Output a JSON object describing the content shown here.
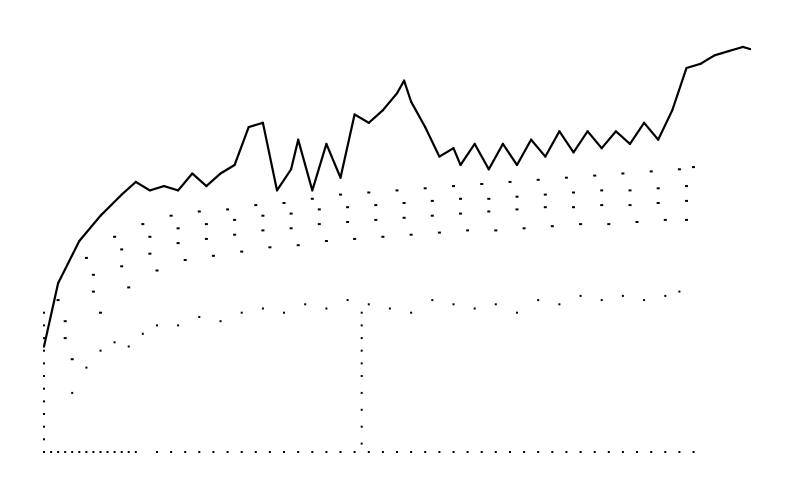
{
  "chart_data": {
    "type": "scatter",
    "title": "",
    "xlabel": "",
    "ylabel": "",
    "grid": false,
    "legend": "none",
    "axes_visible": false,
    "marker_color": "#000000",
    "xlim": [
      0,
      1
    ],
    "ylim": [
      0,
      1
    ],
    "series": [
      {
        "kind": "envelope",
        "x": [
          0.0,
          0.02,
          0.05,
          0.08,
          0.11,
          0.13,
          0.15,
          0.17,
          0.19,
          0.21,
          0.23,
          0.25,
          0.27,
          0.29,
          0.31,
          0.33,
          0.35,
          0.36,
          0.38,
          0.4,
          0.42,
          0.44,
          0.46,
          0.48,
          0.5,
          0.51,
          0.52,
          0.54,
          0.56,
          0.58,
          0.59,
          0.61,
          0.63,
          0.65,
          0.67,
          0.69,
          0.71,
          0.73,
          0.75,
          0.77,
          0.79,
          0.81,
          0.83,
          0.85,
          0.87,
          0.89,
          0.91,
          0.93,
          0.94,
          0.95,
          0.96,
          0.97,
          0.98,
          0.99,
          1.0
        ],
        "y": [
          0.25,
          0.4,
          0.5,
          0.56,
          0.61,
          0.64,
          0.62,
          0.63,
          0.62,
          0.66,
          0.63,
          0.66,
          0.68,
          0.77,
          0.78,
          0.62,
          0.67,
          0.74,
          0.62,
          0.73,
          0.65,
          0.8,
          0.78,
          0.81,
          0.85,
          0.88,
          0.83,
          0.77,
          0.7,
          0.72,
          0.68,
          0.73,
          0.67,
          0.73,
          0.68,
          0.74,
          0.7,
          0.76,
          0.71,
          0.76,
          0.72,
          0.76,
          0.73,
          0.78,
          0.74,
          0.81,
          0.91,
          0.92,
          0.93,
          0.94,
          0.945,
          0.95,
          0.955,
          0.96,
          0.955
        ]
      },
      {
        "kind": "band",
        "x": [
          0.02,
          0.06,
          0.1,
          0.14,
          0.18,
          0.22,
          0.26,
          0.3,
          0.34,
          0.38,
          0.42,
          0.46,
          0.5,
          0.54,
          0.58,
          0.62,
          0.66,
          0.7,
          0.74,
          0.78,
          0.82,
          0.86,
          0.9,
          0.92
        ],
        "y": [
          0.36,
          0.46,
          0.51,
          0.54,
          0.56,
          0.57,
          0.575,
          0.585,
          0.59,
          0.6,
          0.61,
          0.615,
          0.62,
          0.625,
          0.63,
          0.635,
          0.64,
          0.645,
          0.65,
          0.655,
          0.66,
          0.665,
          0.67,
          0.675
        ]
      },
      {
        "kind": "band",
        "x": [
          0.03,
          0.07,
          0.11,
          0.15,
          0.19,
          0.23,
          0.27,
          0.31,
          0.35,
          0.39,
          0.43,
          0.47,
          0.51,
          0.55,
          0.59,
          0.63,
          0.67,
          0.71,
          0.75,
          0.79,
          0.83,
          0.87,
          0.91
        ],
        "y": [
          0.31,
          0.42,
          0.48,
          0.51,
          0.53,
          0.54,
          0.55,
          0.56,
          0.565,
          0.575,
          0.58,
          0.585,
          0.59,
          0.595,
          0.6,
          0.6,
          0.605,
          0.61,
          0.615,
          0.62,
          0.62,
          0.625,
          0.63
        ]
      },
      {
        "kind": "band",
        "x": [
          0.03,
          0.07,
          0.11,
          0.15,
          0.19,
          0.23,
          0.27,
          0.31,
          0.35,
          0.39,
          0.43,
          0.47,
          0.51,
          0.55,
          0.59,
          0.63,
          0.67,
          0.71,
          0.75,
          0.79,
          0.83,
          0.87,
          0.91
        ],
        "y": [
          0.27,
          0.38,
          0.44,
          0.47,
          0.495,
          0.505,
          0.515,
          0.525,
          0.53,
          0.54,
          0.545,
          0.55,
          0.555,
          0.56,
          0.565,
          0.57,
          0.575,
          0.58,
          0.58,
          0.585,
          0.585,
          0.59,
          0.595
        ]
      },
      {
        "kind": "band",
        "x": [
          0.04,
          0.08,
          0.12,
          0.16,
          0.2,
          0.24,
          0.28,
          0.32,
          0.36,
          0.4,
          0.44,
          0.48,
          0.52,
          0.56,
          0.6,
          0.64,
          0.68,
          0.72,
          0.76,
          0.8,
          0.84,
          0.88,
          0.91
        ],
        "y": [
          0.22,
          0.33,
          0.39,
          0.43,
          0.455,
          0.465,
          0.475,
          0.485,
          0.49,
          0.5,
          0.505,
          0.51,
          0.515,
          0.52,
          0.525,
          0.525,
          0.53,
          0.535,
          0.54,
          0.54,
          0.545,
          0.55,
          0.55
        ]
      },
      {
        "kind": "scatter-cluster",
        "x": [
          0.04,
          0.06,
          0.08,
          0.1,
          0.12,
          0.14,
          0.16,
          0.19,
          0.22,
          0.25,
          0.28,
          0.31,
          0.34,
          0.37,
          0.4,
          0.43,
          0.46,
          0.49,
          0.52,
          0.55,
          0.58,
          0.61,
          0.64,
          0.67,
          0.7,
          0.73,
          0.76,
          0.79,
          0.82,
          0.85,
          0.88,
          0.9
        ],
        "y": [
          0.14,
          0.2,
          0.24,
          0.26,
          0.25,
          0.28,
          0.3,
          0.3,
          0.32,
          0.31,
          0.33,
          0.34,
          0.33,
          0.35,
          0.34,
          0.36,
          0.35,
          0.34,
          0.33,
          0.36,
          0.35,
          0.34,
          0.35,
          0.33,
          0.36,
          0.35,
          0.37,
          0.36,
          0.37,
          0.36,
          0.37,
          0.38
        ]
      },
      {
        "kind": "baseline",
        "x": [
          0.0,
          0.01,
          0.02,
          0.03,
          0.04,
          0.05,
          0.06,
          0.07,
          0.08,
          0.09,
          0.1,
          0.11,
          0.12,
          0.13,
          0.16,
          0.18,
          0.2,
          0.22,
          0.24,
          0.26,
          0.28,
          0.3,
          0.32,
          0.34,
          0.36,
          0.38,
          0.4,
          0.42,
          0.44,
          0.46,
          0.48,
          0.5,
          0.52,
          0.54,
          0.56,
          0.58,
          0.6,
          0.62,
          0.64,
          0.66,
          0.68,
          0.7,
          0.72,
          0.74,
          0.76,
          0.78,
          0.8,
          0.82,
          0.84,
          0.86,
          0.88,
          0.9,
          0.92
        ],
        "y": [
          0.0,
          0.0,
          0.0,
          0.0,
          0.0,
          0.0,
          0.0,
          0.0,
          0.0,
          0.0,
          0.0,
          0.0,
          0.0,
          0.0,
          0.0,
          0.0,
          0.0,
          0.0,
          0.0,
          0.0,
          0.0,
          0.0,
          0.0,
          0.0,
          0.0,
          0.0,
          0.0,
          0.0,
          0.0,
          0.0,
          0.0,
          0.0,
          0.0,
          0.0,
          0.0,
          0.0,
          0.0,
          0.0,
          0.0,
          0.0,
          0.0,
          0.0,
          0.0,
          0.0,
          0.0,
          0.0,
          0.0,
          0.0,
          0.0,
          0.0,
          0.0,
          0.0,
          0.0
        ]
      },
      {
        "kind": "drop-column",
        "x": [
          0.0,
          0.0,
          0.0,
          0.0,
          0.0,
          0.0,
          0.0,
          0.0,
          0.0,
          0.0,
          0.0
        ],
        "y": [
          0.03,
          0.06,
          0.09,
          0.12,
          0.15,
          0.18,
          0.21,
          0.24,
          0.27,
          0.3,
          0.33
        ]
      },
      {
        "kind": "drop-column",
        "x": [
          0.45,
          0.45,
          0.45,
          0.45,
          0.45,
          0.45,
          0.45,
          0.45,
          0.45,
          0.45
        ],
        "y": [
          0.02,
          0.06,
          0.1,
          0.14,
          0.18,
          0.21,
          0.24,
          0.27,
          0.3,
          0.33
        ]
      }
    ]
  }
}
